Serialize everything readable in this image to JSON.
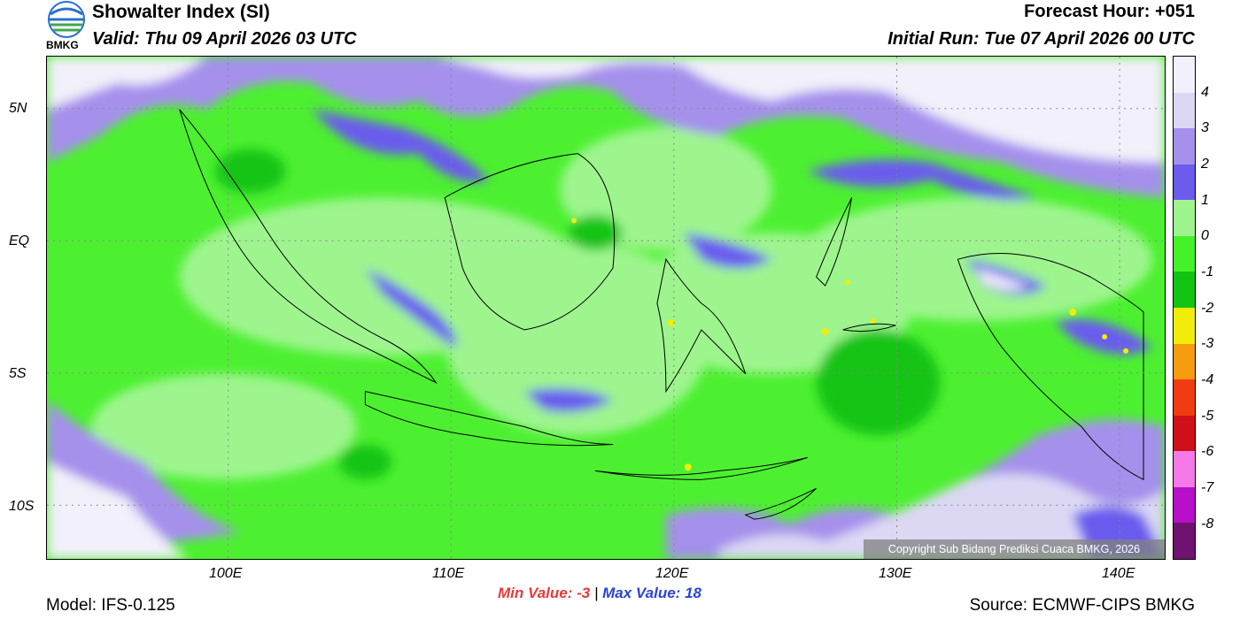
{
  "header": {
    "title": "Showalter Index (SI)",
    "valid": "Valid: Thu 09 April 2026 03 UTC",
    "forecast_hour": "Forecast Hour: +051",
    "initial_run": "Initial Run: Tue 07 April 2026 00 UTC"
  },
  "logo": {
    "text": "BMKG",
    "icon": "bmkg-logo-icon"
  },
  "map": {
    "lat_labels": [
      "5N",
      "EQ",
      "5S",
      "10S"
    ],
    "lon_labels": [
      "100E",
      "110E",
      "120E",
      "130E",
      "140E"
    ],
    "copyright": "Copyright Sub Bidang Prediksi Cuaca BMKG, 2026"
  },
  "colorbar": {
    "labels": [
      "4",
      "3",
      "2",
      "1",
      "0",
      "-1",
      "-2",
      "-3",
      "-4",
      "-5",
      "-6",
      "-7",
      "-8"
    ],
    "colors": [
      "#f2f0fa",
      "#dcd8f4",
      "#a590ec",
      "#6b5cee",
      "#9ef58e",
      "#45f22a",
      "#12c412",
      "#f2ec0a",
      "#f59b10",
      "#f03c10",
      "#d00f18",
      "#f57ae8",
      "#b80fc8",
      "#6e1470"
    ]
  },
  "footer": {
    "min_label": "Min Value:",
    "min_value": "-3",
    "separator": "|",
    "max_label": "Max Value:",
    "max_value": "18",
    "model": "Model: IFS-0.125",
    "source": "Source: ECMWF-CIPS BMKG"
  }
}
